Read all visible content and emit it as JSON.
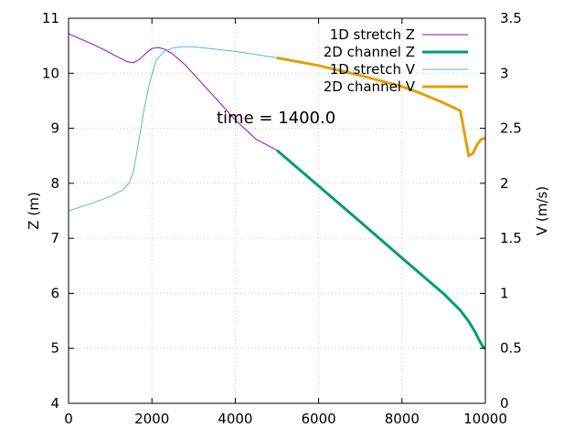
{
  "chart_data": {
    "type": "line",
    "annotation": "time = 1400.0",
    "xlabel": "",
    "ylabel_left": "Z (m)",
    "ylabel_right": "V (m/s)",
    "xlim": [
      0,
      10000
    ],
    "ylim_left": [
      4,
      11
    ],
    "ylim_right": [
      0,
      3.5
    ],
    "x_ticks": [
      "0",
      "2000",
      "4000",
      "6000",
      "8000",
      "10000"
    ],
    "y_ticks_left": [
      "4",
      "5",
      "6",
      "7",
      "8",
      "9",
      "10",
      "11"
    ],
    "y_ticks_right": [
      "0",
      "0.5",
      "1",
      "1.5",
      "2",
      "2.5",
      "3",
      "3.5"
    ],
    "grid": true,
    "legend_position": "top-right",
    "series": [
      {
        "name": "1D stretch Z",
        "axis": "left",
        "color": "#9400d3",
        "width": 1,
        "x": [
          0,
          300,
          600,
          900,
          1200,
          1400,
          1550,
          1700,
          1850,
          2000,
          2150,
          2300,
          2500,
          2800,
          3100,
          3500,
          4000,
          4500,
          5000
        ],
        "y": [
          10.72,
          10.62,
          10.52,
          10.41,
          10.29,
          10.21,
          10.19,
          10.25,
          10.36,
          10.45,
          10.47,
          10.44,
          10.35,
          10.15,
          9.9,
          9.57,
          9.15,
          8.8,
          8.6
        ]
      },
      {
        "name": "2D channel Z",
        "axis": "left",
        "color": "#009e73",
        "width": 3,
        "x": [
          5000,
          6000,
          7000,
          8000,
          9000,
          9400,
          9600,
          9750,
          9850,
          9950,
          10000
        ],
        "y": [
          8.6,
          7.95,
          7.3,
          6.64,
          5.99,
          5.69,
          5.49,
          5.3,
          5.15,
          5.02,
          5.0
        ]
      },
      {
        "name": "1D stretch V",
        "axis": "right",
        "color": "#56b4e9",
        "width": 1,
        "x": [
          0,
          500,
          1000,
          1300,
          1450,
          1550,
          1650,
          1800,
          1950,
          2100,
          2300,
          2500,
          2700,
          3000,
          3500,
          4000,
          4500,
          5000
        ],
        "y": [
          1.75,
          1.81,
          1.88,
          1.94,
          2.0,
          2.1,
          2.3,
          2.65,
          2.92,
          3.12,
          3.2,
          3.23,
          3.24,
          3.24,
          3.22,
          3.2,
          3.17,
          3.14
        ]
      },
      {
        "name": "2D channel V",
        "axis": "right",
        "color": "#e69f00",
        "width": 3,
        "x": [
          5000,
          6000,
          7000,
          8000,
          8500,
          9000,
          9400,
          9600,
          9700,
          9800,
          9900,
          10000
        ],
        "y": [
          3.14,
          3.07,
          2.98,
          2.88,
          2.81,
          2.73,
          2.66,
          2.25,
          2.27,
          2.35,
          2.4,
          2.41
        ]
      }
    ]
  }
}
